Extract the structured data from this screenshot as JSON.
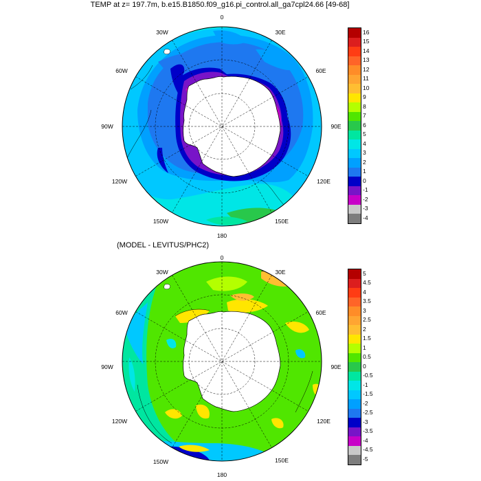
{
  "top_panel": {
    "title": "TEMP at z= 197.7m, b.e15.B1850.f09_g16.pi_control.all_ga7cpl24.66 [49-68]",
    "longitude_labels": {
      "top": "0",
      "nne": "30E",
      "ene": "60E",
      "e": "90E",
      "ese": "120E",
      "sse": "150E",
      "bottom": "180",
      "ssw": "150W",
      "wsw": "120W",
      "w": "90W",
      "wnw": "60W",
      "nnw": "30W"
    },
    "colorbar": {
      "tick_labels": [
        "16",
        "15",
        "14",
        "13",
        "12",
        "11",
        "10",
        "9",
        "8",
        "7",
        "6",
        "5",
        "4",
        "3",
        "2",
        "1",
        "0",
        "-1",
        "-2",
        "-3",
        "-4"
      ],
      "colors": [
        "#b40000",
        "#dc1e1e",
        "#ff3c14",
        "#ff6428",
        "#ff8c28",
        "#ffa532",
        "#ffbe32",
        "#ffe600",
        "#b4ff00",
        "#50e600",
        "#28c84b",
        "#00e6a0",
        "#00e6e6",
        "#00c8ff",
        "#00a0ff",
        "#1e78f0",
        "#0000c8",
        "#7814c8",
        "#c800c8",
        "#c8c8c8",
        "#7d7d7d"
      ]
    }
  },
  "bottom_panel": {
    "title": "(MODEL - LEVITUS/PHC2)",
    "longitude_labels": {
      "top": "0",
      "nne": "30E",
      "ene": "60E",
      "e": "90E",
      "ese": "120E",
      "sse": "150E",
      "bottom": "180",
      "ssw": "150W",
      "wsw": "120W",
      "w": "90W",
      "wnw": "60W",
      "nnw": "30W"
    },
    "colorbar": {
      "tick_labels": [
        "5",
        "4.5",
        "4",
        "3.5",
        "3",
        "2.5",
        "2",
        "1.5",
        "1",
        "0.5",
        "0",
        "-0.5",
        "-1",
        "-1.5",
        "-2",
        "-2.5",
        "-3",
        "-3.5",
        "-4",
        "-4.5",
        "-5"
      ],
      "colors": [
        "#b40000",
        "#dc1e1e",
        "#ff3c14",
        "#ff6428",
        "#ff8c28",
        "#ffa532",
        "#ffbe32",
        "#ffe600",
        "#b4ff00",
        "#50e600",
        "#28c84b",
        "#00e6a0",
        "#00e6e6",
        "#00c8ff",
        "#00a0ff",
        "#1e78f0",
        "#0000c8",
        "#7814c8",
        "#c800c8",
        "#c8c8c8",
        "#7d7d7d"
      ]
    }
  }
}
